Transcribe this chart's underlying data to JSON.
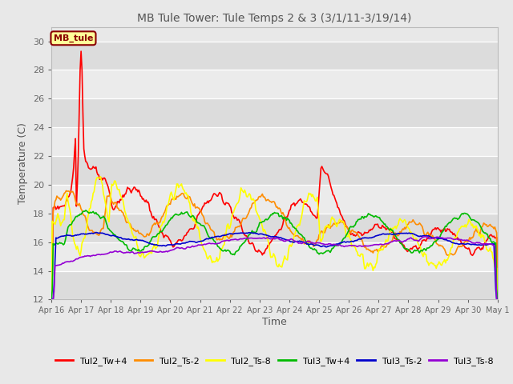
{
  "title": "MB Tule Tower: Tule Temps 2 & 3 (3/1/11-3/19/14)",
  "xlabel": "Time",
  "ylabel": "Temperature (C)",
  "ylim": [
    12,
    31
  ],
  "yticks": [
    12,
    14,
    16,
    18,
    20,
    22,
    24,
    26,
    28,
    30
  ],
  "annotation_text": "MB_tule",
  "annotation_color": "#8B0000",
  "annotation_bg": "#FFFF99",
  "series_colors": {
    "Tul2_Tw+4": "#FF0000",
    "Tul2_Ts-2": "#FF8C00",
    "Tul2_Ts-8": "#FFFF00",
    "Tul3_Tw+4": "#00BB00",
    "Tul3_Ts-2": "#0000CC",
    "Tul3_Ts-8": "#9400D3"
  },
  "bg_color": "#E8E8E8",
  "band_dark": "#DCDCDC",
  "band_light": "#EBEBEB",
  "xtick_labels": [
    "Apr 16",
    "Apr 17",
    "Apr 18",
    "Apr 19",
    "Apr 20",
    "Apr 21",
    "Apr 22",
    "Apr 23",
    "Apr 24",
    "Apr 25",
    "Apr 26",
    "Apr 27",
    "Apr 28",
    "Apr 29",
    "Apr 30",
    "May 1"
  ],
  "num_points": 481,
  "figsize": [
    6.4,
    4.8
  ],
  "dpi": 100
}
